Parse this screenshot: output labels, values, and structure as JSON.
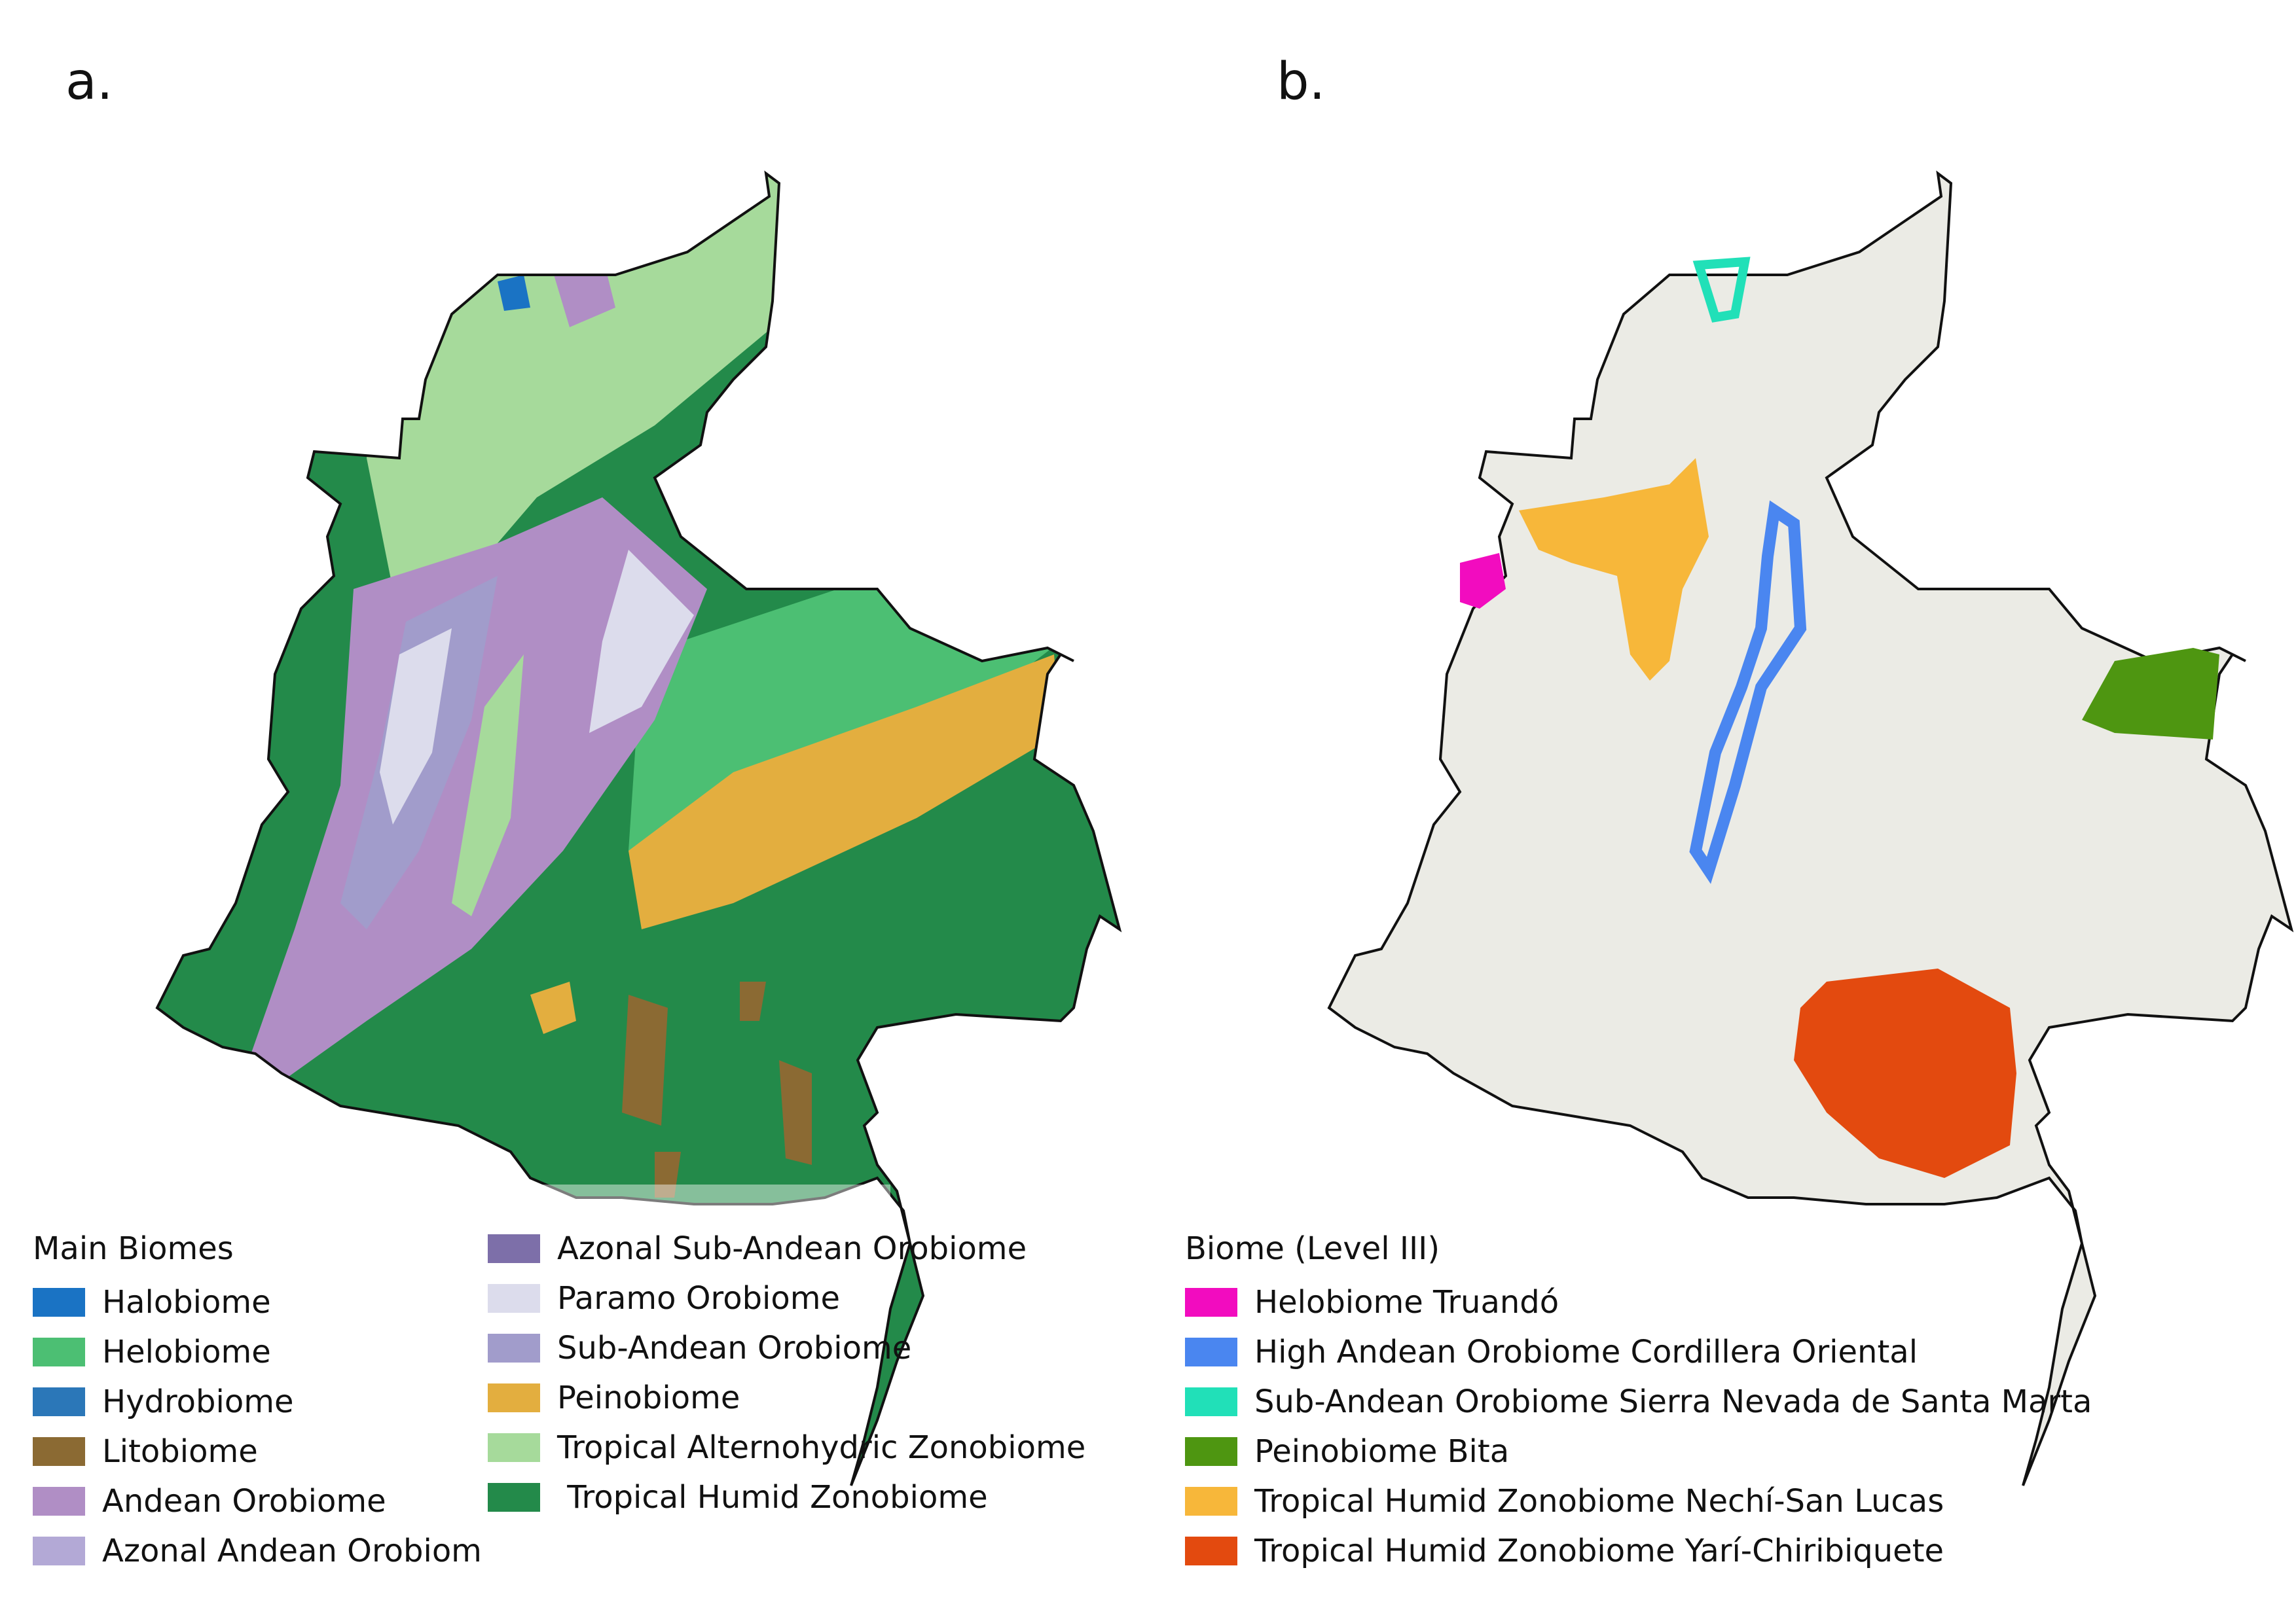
{
  "panels": {
    "a_label": "a.",
    "b_label": "b."
  },
  "legend_a": {
    "title": "Main Biomes",
    "col1": [
      {
        "label": "Halobiome",
        "color": "#1a73c4"
      },
      {
        "label": "Helobiome",
        "color": "#4cbf73"
      },
      {
        "label": "Hydrobiome",
        "color": "#2b77b8"
      },
      {
        "label": "Litobiome",
        "color": "#8b6a33"
      },
      {
        "label": "Andean Orobiome",
        "color": "#b08ec5"
      },
      {
        "label": "Azonal Andean Orobiom",
        "color": "#b3a9d6"
      }
    ],
    "col2": [
      {
        "label": "Azonal Sub-Andean Orobiome",
        "color": "#7d6fa9"
      },
      {
        "label": "Paramo Orobiome",
        "color": "#dcdcec"
      },
      {
        "label": "Sub-Andean Orobiome",
        "color": "#a19ccb"
      },
      {
        "label": "Peinobiome",
        "color": "#e3ae3f"
      },
      {
        "label": "Tropical Alternohydric Zonobiome",
        "color": "#a6da9b"
      },
      {
        "label": " Tropical Humid Zonobiome",
        "color": "#238a4a"
      }
    ]
  },
  "legend_b": {
    "title": "Biome (Level III)",
    "items": [
      {
        "label": "Helobiome Truandó",
        "color": "#f20cbf"
      },
      {
        "label": "High Andean Orobiome Cordillera Oriental",
        "color": "#4a86f0"
      },
      {
        "label": "Sub-Andean Orobiome Sierra Nevada de Santa Marta",
        "color": "#21e0b8"
      },
      {
        "label": "Peinobiome Bita",
        "color": "#4e9611"
      },
      {
        "label": "Tropical Humid Zonobiome Nechí-San Lucas",
        "color": "#f7b73a"
      },
      {
        "label": "Tropical Humid Zonobiome Yarí-Chiribiquete",
        "color": "#e34a0f"
      }
    ]
  },
  "map_colors": {
    "outline": "#111111",
    "background_b": "#ebebe5",
    "humid": "#238a4a",
    "alternohydric": "#a6da9b",
    "helobiome": "#4cbf73",
    "andean": "#b08ec5",
    "paramo": "#dcdcec",
    "subandean": "#a19ccb",
    "peinobiome": "#e3ae3f",
    "litobiome": "#8b6a33",
    "halobiome": "#1a73c4"
  }
}
